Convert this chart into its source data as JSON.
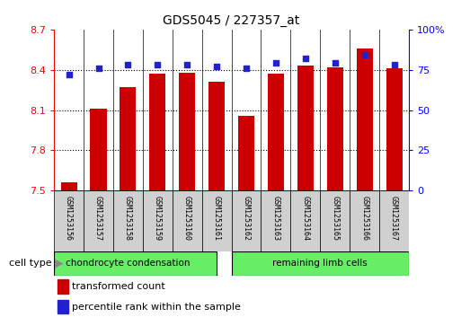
{
  "title": "GDS5045 / 227357_at",
  "samples": [
    "GSM1253156",
    "GSM1253157",
    "GSM1253158",
    "GSM1253159",
    "GSM1253160",
    "GSM1253161",
    "GSM1253162",
    "GSM1253163",
    "GSM1253164",
    "GSM1253165",
    "GSM1253166",
    "GSM1253167"
  ],
  "bar_values": [
    7.56,
    8.11,
    8.27,
    8.37,
    8.38,
    8.31,
    8.06,
    8.37,
    8.43,
    8.42,
    8.56,
    8.41
  ],
  "bar_bottom": 7.5,
  "percentile_values": [
    72,
    76,
    78,
    78,
    78,
    77,
    76,
    79,
    82,
    79,
    84,
    78
  ],
  "ylim_left": [
    7.5,
    8.7
  ],
  "ylim_right": [
    0,
    100
  ],
  "yticks_left": [
    7.5,
    7.8,
    8.1,
    8.4,
    8.7
  ],
  "yticks_right": [
    0,
    25,
    50,
    75,
    100
  ],
  "bar_color": "#cc0000",
  "dot_color": "#2222cc",
  "background_color": "#ffffff",
  "sample_box_color": "#d0d0d0",
  "cell_group1_label": "chondrocyte condensation",
  "cell_group2_label": "remaining limb cells",
  "cell_group_color": "#66ee66",
  "cell_type_label": "cell type",
  "legend_bar_label": "transformed count",
  "legend_dot_label": "percentile rank within the sample",
  "title_fontsize": 10,
  "axis_fontsize": 8,
  "label_fontsize": 7.5,
  "legend_fontsize": 8
}
